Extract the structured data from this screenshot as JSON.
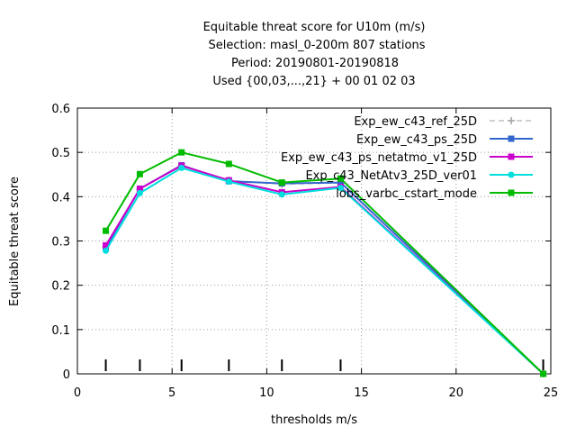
{
  "chart_data": {
    "type": "line",
    "title_lines": [
      "Equitable threat score  for U10m (m/s)",
      "Selection: masl_0-200m    807 stations",
      "Period: 20190801-20190818",
      "Used {00,03,...,21} + 00 01 02 03"
    ],
    "xlabel": "thresholds m/s",
    "ylabel": "Equitable threat score",
    "xlim": [
      0,
      25
    ],
    "ylim": [
      0,
      0.6
    ],
    "x_ticks": [
      "0",
      "5",
      "10",
      "15",
      "20",
      "25"
    ],
    "y_ticks": [
      "0",
      "0.1",
      "0.2",
      "0.3",
      "0.4",
      "0.5",
      "0.6"
    ],
    "grid": true,
    "legend_position": "top-right",
    "threshold_marks": [
      1.5,
      3.3,
      5.5,
      8.0,
      10.8,
      13.9,
      24.6
    ],
    "x": [
      1.5,
      3.3,
      5.5,
      8.0,
      10.8,
      13.9,
      24.6
    ],
    "series": [
      {
        "name": "Exp_ew_c43_ref_25D",
        "color": "#a0a0a0",
        "dashed": true,
        "marker": "plus",
        "values": [
          0.287,
          0.417,
          0.469,
          0.437,
          0.428,
          0.431,
          0.0
        ]
      },
      {
        "name": "Exp_ew_c43_ps_25D",
        "color": "#3366cc",
        "dashed": false,
        "marker": "square",
        "values": [
          0.285,
          0.418,
          0.471,
          0.435,
          0.43,
          0.432,
          0.0
        ]
      },
      {
        "name": "Exp_ew_c43_ps_netatmo_v1_25D",
        "color": "#cc00cc",
        "dashed": false,
        "marker": "square",
        "values": [
          0.29,
          0.418,
          0.47,
          0.437,
          0.41,
          0.422,
          0.0
        ]
      },
      {
        "name": "Exp_c43_NetAtv3_25D_ver01",
        "color": "#00dddd",
        "dashed": false,
        "marker": "circle",
        "values": [
          0.278,
          0.408,
          0.465,
          0.434,
          0.405,
          0.42,
          0.0
        ]
      },
      {
        "name": "lobs_varbc_cstart_mode",
        "color": "#00bb00",
        "dashed": false,
        "marker": "square",
        "values": [
          0.323,
          0.451,
          0.5,
          0.474,
          0.432,
          0.441,
          0.0
        ]
      }
    ]
  }
}
